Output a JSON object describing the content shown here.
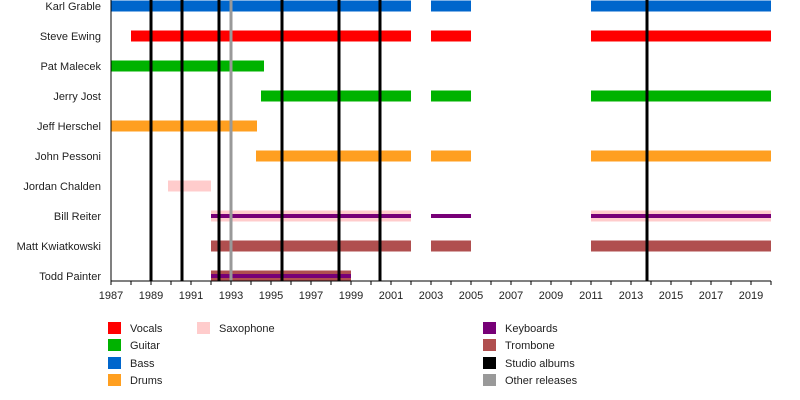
{
  "chart_data": {
    "type": "timeline",
    "title": "",
    "xlim": [
      1987,
      2020
    ],
    "x_ticks": [
      1987,
      1989,
      1991,
      1993,
      1995,
      1997,
      1999,
      2001,
      2003,
      2005,
      2007,
      2009,
      2011,
      2013,
      2015,
      2017,
      2019
    ],
    "roles": {
      "Vocals": "#ff0000",
      "Guitar": "#00b200",
      "Bass": "#0066cc",
      "Drums": "#ff9f20",
      "Saxophone": "#ffcccc",
      "Keyboards": "#770077",
      "Trombone": "#b04f4f",
      "Studio albums": "#000000",
      "Other releases": "#999999"
    },
    "members": [
      {
        "name": "Karl Grable",
        "bars": [
          {
            "role": "Bass",
            "start": 1987,
            "end": 2002
          },
          {
            "role": "Bass",
            "start": 2003,
            "end": 2005
          },
          {
            "role": "Bass",
            "start": 2011,
            "end": 2020
          }
        ]
      },
      {
        "name": "Steve Ewing",
        "bars": [
          {
            "role": "Vocals",
            "start": 1988,
            "end": 2002
          },
          {
            "role": "Vocals",
            "start": 2003,
            "end": 2005
          },
          {
            "role": "Vocals",
            "start": 2011,
            "end": 2020
          }
        ]
      },
      {
        "name": "Pat Malecek",
        "bars": [
          {
            "role": "Guitar",
            "start": 1987,
            "end": 1994.65
          }
        ]
      },
      {
        "name": "Jerry Jost",
        "bars": [
          {
            "role": "Guitar",
            "start": 1994.5,
            "end": 2002
          },
          {
            "role": "Guitar",
            "start": 2003,
            "end": 2005
          },
          {
            "role": "Guitar",
            "start": 2011,
            "end": 2020
          }
        ]
      },
      {
        "name": "Jeff Herschel",
        "bars": [
          {
            "role": "Drums",
            "start": 1987,
            "end": 1994.3
          }
        ]
      },
      {
        "name": "John Pessoni",
        "bars": [
          {
            "role": "Drums",
            "start": 1994.25,
            "end": 2002
          },
          {
            "role": "Drums",
            "start": 2003,
            "end": 2005
          },
          {
            "role": "Drums",
            "start": 2011,
            "end": 2020
          }
        ]
      },
      {
        "name": "Jordan Chalden",
        "bars": [
          {
            "role": "Saxophone",
            "start": 1989.85,
            "end": 1992
          }
        ]
      },
      {
        "name": "Bill Reiter",
        "bars": [
          {
            "role": "Saxophone",
            "start": 1992,
            "end": 2002
          },
          {
            "role": "Keyboards",
            "start": 1992,
            "end": 2002,
            "thin": true
          },
          {
            "role": "Keyboards",
            "start": 2003,
            "end": 2005,
            "thin": true
          },
          {
            "role": "Saxophone",
            "start": 2011,
            "end": 2020
          },
          {
            "role": "Keyboards",
            "start": 2011,
            "end": 2020,
            "thin": true
          }
        ]
      },
      {
        "name": "Matt Kwiatkowski",
        "bars": [
          {
            "role": "Trombone",
            "start": 1992,
            "end": 2002
          },
          {
            "role": "Trombone",
            "start": 2003,
            "end": 2005
          },
          {
            "role": "Trombone",
            "start": 2011,
            "end": 2020
          }
        ]
      },
      {
        "name": "Todd Painter",
        "bars": [
          {
            "role": "Trombone",
            "start": 1992,
            "end": 1999
          },
          {
            "role": "Keyboards",
            "start": 1992,
            "end": 1999,
            "thin": true
          }
        ]
      }
    ],
    "studio_albums": [
      1989,
      1990.55,
      1992.4,
      1995.55,
      1998.4,
      2000.45,
      2013.8
    ],
    "other_releases": [
      1993.0
    ],
    "legend": [
      {
        "label": "Vocals",
        "color": "#ff0000"
      },
      {
        "label": "Guitar",
        "color": "#00b200"
      },
      {
        "label": "Bass",
        "color": "#0066cc"
      },
      {
        "label": "Drums",
        "color": "#ff9f20"
      },
      {
        "label": "Saxophone",
        "color": "#ffcccc"
      },
      {
        "label": "Keyboards",
        "color": "#770077"
      },
      {
        "label": "Trombone",
        "color": "#b04f4f"
      },
      {
        "label": "Studio albums",
        "color": "#000000"
      },
      {
        "label": "Other releases",
        "color": "#999999"
      }
    ]
  }
}
